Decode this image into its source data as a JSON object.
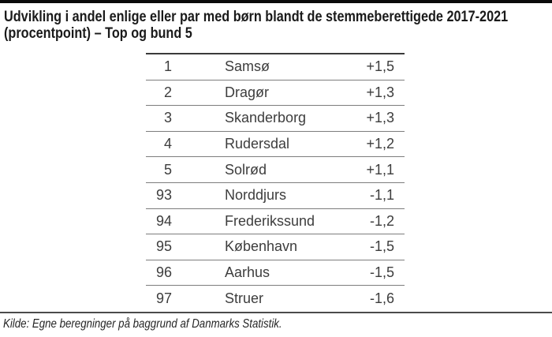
{
  "page": {
    "title_lines": [
      "Udvikling i andel enlige eller par med børn blandt de stemmeberettigede 2017-2021",
      "(procentpoint) – Top og bund 5"
    ],
    "source": "Kilde: Egne beregninger på baggrund af Danmarks Statistik."
  },
  "table": {
    "rows": [
      {
        "rank": "1",
        "name": "Samsø",
        "value": "+1,5"
      },
      {
        "rank": "2",
        "name": "Dragør",
        "value": "+1,3"
      },
      {
        "rank": "3",
        "name": "Skanderborg",
        "value": "+1,3"
      },
      {
        "rank": "4",
        "name": "Rudersdal",
        "value": "+1,2"
      },
      {
        "rank": "5",
        "name": "Solrød",
        "value": "+1,1"
      },
      {
        "rank": "93",
        "name": "Norddjurs",
        "value": "-1,1"
      },
      {
        "rank": "94",
        "name": "Frederikssund",
        "value": "-1,2"
      },
      {
        "rank": "95",
        "name": "København",
        "value": "-1,5"
      },
      {
        "rank": "96",
        "name": "Aarhus",
        "value": "-1,5"
      },
      {
        "rank": "97",
        "name": "Struer",
        "value": "-1,6"
      }
    ]
  },
  "colors": {
    "page_top_border": "#0a0a0a",
    "title_text": "#1a1a1a",
    "table_top_border": "#3a3a3a",
    "row_separator": "#7d7d7d",
    "bottom_rule": "#4b4b4b",
    "cell_text": "#3d3d3d",
    "source_text": "#262626",
    "background": "#ffffff"
  },
  "chart_data": {
    "type": "table",
    "title": "Udvikling i andel enlige eller par med børn blandt de stemmeberettigede 2017-2021 (procentpoint) – Top og bund 5",
    "rows": [
      {
        "rank": 1,
        "municipality": "Samsø",
        "change_pp": 1.5
      },
      {
        "rank": 2,
        "municipality": "Dragør",
        "change_pp": 1.3
      },
      {
        "rank": 3,
        "municipality": "Skanderborg",
        "change_pp": 1.3
      },
      {
        "rank": 4,
        "municipality": "Rudersdal",
        "change_pp": 1.2
      },
      {
        "rank": 5,
        "municipality": "Solrød",
        "change_pp": 1.1
      },
      {
        "rank": 93,
        "municipality": "Norddjurs",
        "change_pp": -1.1
      },
      {
        "rank": 94,
        "municipality": "Frederikssund",
        "change_pp": -1.2
      },
      {
        "rank": 95,
        "municipality": "København",
        "change_pp": -1.5
      },
      {
        "rank": 96,
        "municipality": "Aarhus",
        "change_pp": -1.5
      },
      {
        "rank": 97,
        "municipality": "Struer",
        "change_pp": -1.6
      }
    ],
    "source": "Kilde: Egne beregninger på baggrund af Danmarks Statistik."
  }
}
